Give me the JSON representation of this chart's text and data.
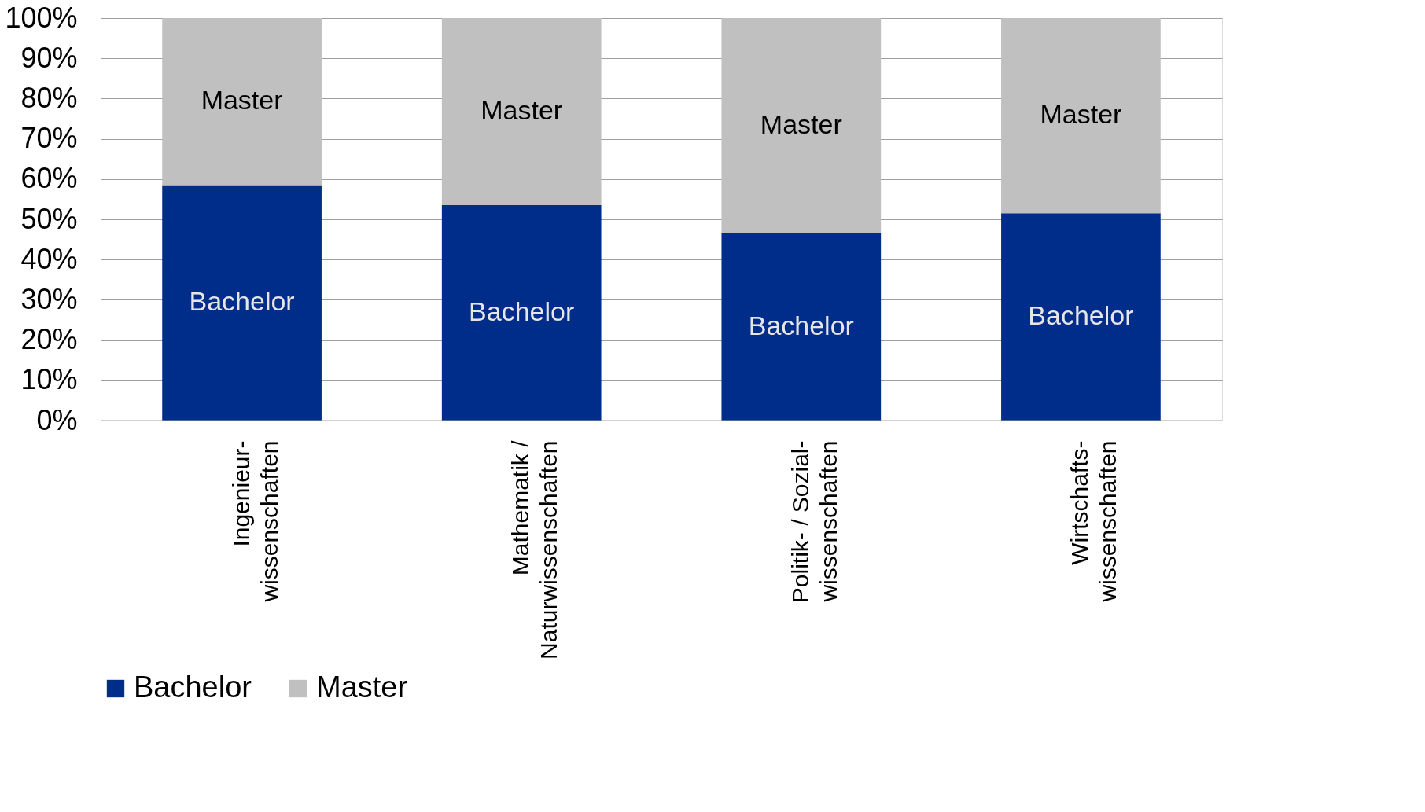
{
  "chart_data": {
    "type": "bar",
    "stacked": true,
    "categories": [
      "Ingenieur-\nwissenschaften",
      "Mathematik  /\nNaturwissenschaften",
      "Politik- / Sozial-\nwissenschaften",
      "Wirtschafts-\nwissenschaften"
    ],
    "series": [
      {
        "name": "Bachelor",
        "color": "#002d8a",
        "values": [
          58.5,
          53.5,
          46.5,
          51.5
        ]
      },
      {
        "name": "Master",
        "color": "#c0c0c0",
        "values": [
          41.5,
          46.5,
          53.5,
          48.5
        ]
      }
    ],
    "ylim": [
      0,
      100
    ],
    "yticks": [
      {
        "value": 0,
        "label": "0%"
      },
      {
        "value": 10,
        "label": "10%"
      },
      {
        "value": 20,
        "label": "20%"
      },
      {
        "value": 30,
        "label": "30%"
      },
      {
        "value": 40,
        "label": "40%"
      },
      {
        "value": 50,
        "label": "50%"
      },
      {
        "value": 60,
        "label": "60%"
      },
      {
        "value": 70,
        "label": "70%"
      },
      {
        "value": 80,
        "label": "80%"
      },
      {
        "value": 90,
        "label": "90%"
      },
      {
        "value": 100,
        "label": "100%"
      }
    ],
    "grid": "y",
    "legend": "bottom"
  }
}
